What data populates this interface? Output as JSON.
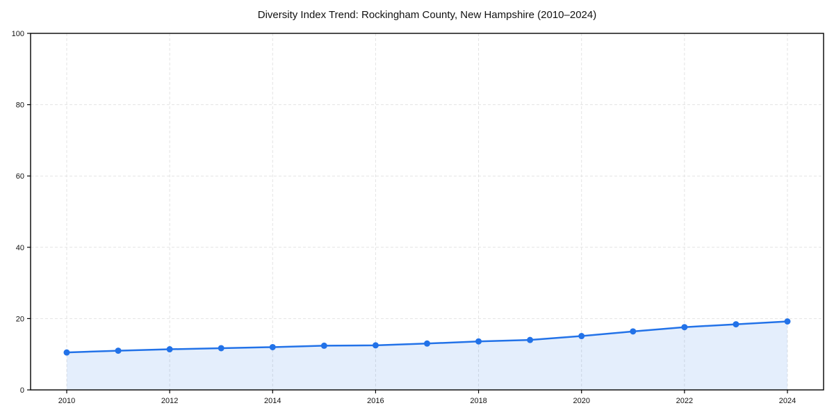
{
  "chart_data": {
    "type": "line",
    "title": "Diversity Index Trend: Rockingham County, New Hampshire (2010–2024)",
    "series": [
      {
        "name": "Diversity Index",
        "x": [
          2010,
          2011,
          2012,
          2013,
          2014,
          2015,
          2016,
          2017,
          2018,
          2019,
          2020,
          2021,
          2022,
          2023,
          2024
        ],
        "values": [
          10.5,
          11.0,
          11.4,
          11.7,
          12.0,
          12.4,
          12.5,
          13.0,
          13.6,
          14.0,
          15.1,
          16.4,
          17.6,
          18.4,
          19.2
        ]
      }
    ],
    "xlabel": "",
    "ylabel": "",
    "xlim": [
      2009.3,
      2024.7
    ],
    "ylim": [
      0,
      100
    ],
    "xticks": [
      2010,
      2012,
      2014,
      2016,
      2018,
      2020,
      2022,
      2024
    ],
    "yticks": [
      0,
      20,
      40,
      60,
      80,
      100
    ],
    "grid": true,
    "legend": false,
    "area_fill": true,
    "markers": true,
    "colors": {
      "line": "#2272e8",
      "marker": "#2272e8",
      "area_fill": "rgba(34,114,232,0.12)",
      "grid": "#e3e3e3",
      "axis": "#000000",
      "text": "#111111",
      "background": "#ffffff"
    }
  }
}
